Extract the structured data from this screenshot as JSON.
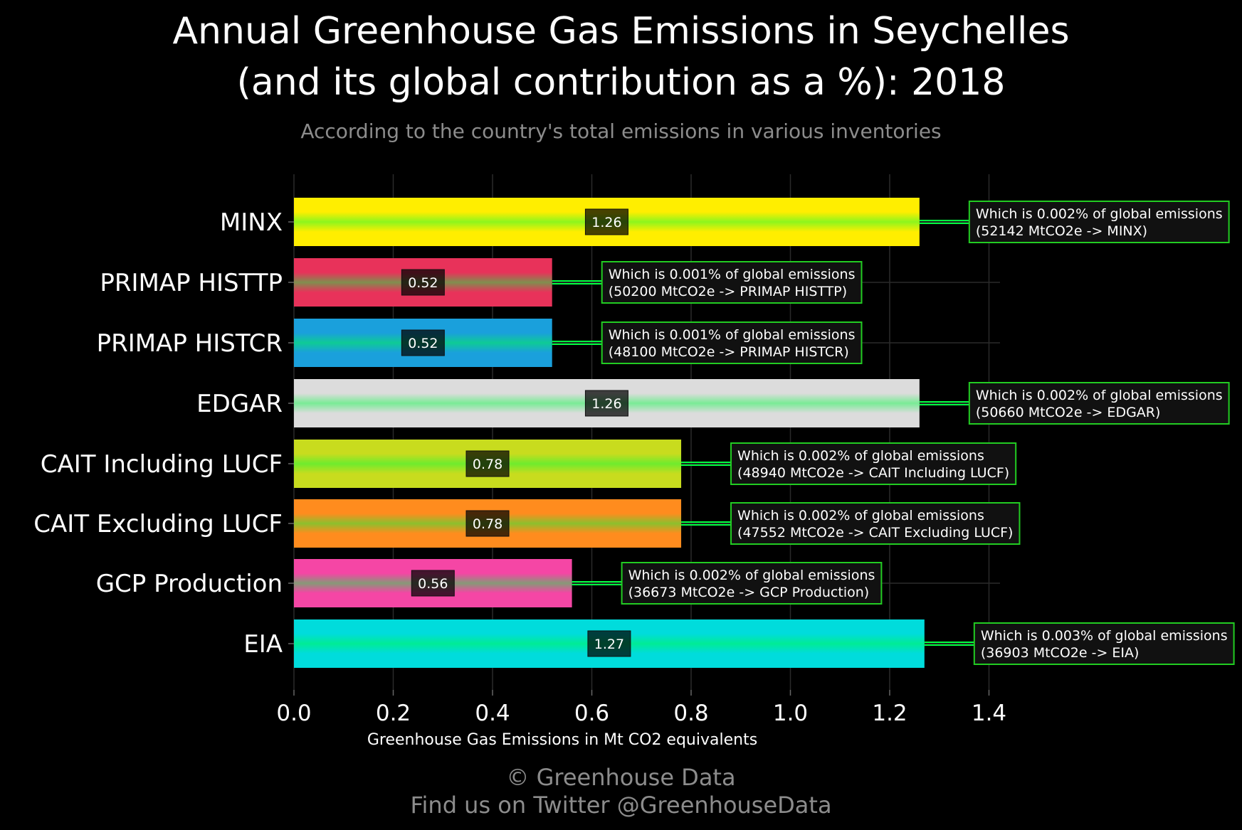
{
  "title_line1": "Annual Greenhouse Gas Emissions in Seychelles",
  "title_line2": "(and its global contribution as a %): 2018",
  "subtitle": "According to the country's total emissions in various inventories",
  "credit_line1": "© Greenhouse Data",
  "credit_line2": "Find us on Twitter @GreenhouseData",
  "chart_data": {
    "type": "bar",
    "orientation": "horizontal",
    "xlabel": "Greenhouse Gas Emissions in Mt CO2 equivalents",
    "xlim": [
      0,
      1.4
    ],
    "xticks": [
      "0.0",
      "0.2",
      "0.4",
      "0.6",
      "0.8",
      "1.0",
      "1.2",
      "1.4"
    ],
    "grid": true,
    "categories": [
      "MINX",
      "PRIMAP HISTTP",
      "PRIMAP HISTCR",
      "EDGAR",
      "CAIT Including LUCF",
      "CAIT Excluding LUCF",
      "GCP Production",
      "EIA"
    ],
    "values": [
      1.26,
      0.52,
      0.52,
      1.26,
      0.78,
      0.78,
      0.56,
      1.27
    ],
    "value_labels": [
      "1.26",
      "0.52",
      "0.52",
      "1.26",
      "0.78",
      "0.78",
      "0.56",
      "1.27"
    ],
    "colors": [
      "#ffee00",
      "#e8325a",
      "#1aa0dc",
      "#dcdcdc",
      "#c8dc1e",
      "#ff8c1e",
      "#f546a5",
      "#00dcdc"
    ],
    "annotations": [
      [
        "Which is 0.002% of global emissions",
        "(52142 MtCO2e -> MINX)"
      ],
      [
        "Which is 0.001% of global emissions",
        "(50200 MtCO2e -> PRIMAP HISTTP)"
      ],
      [
        "Which is 0.001% of global emissions",
        "(48100 MtCO2e -> PRIMAP HISTCR)"
      ],
      [
        "Which is 0.002% of global emissions",
        "(50660 MtCO2e -> EDGAR)"
      ],
      [
        "Which is 0.002% of global emissions",
        "(48940 MtCO2e -> CAIT Including LUCF)"
      ],
      [
        "Which is 0.002% of global emissions",
        "(47552 MtCO2e -> CAIT Excluding LUCF)"
      ],
      [
        "Which is 0.002% of global emissions",
        "(36673 MtCO2e -> GCP Production)"
      ],
      [
        "Which is 0.003% of global emissions",
        "(36903 MtCO2e -> EIA)"
      ]
    ],
    "annotation_border_color": "#22cc22",
    "highlight_color": "#00ff40"
  }
}
